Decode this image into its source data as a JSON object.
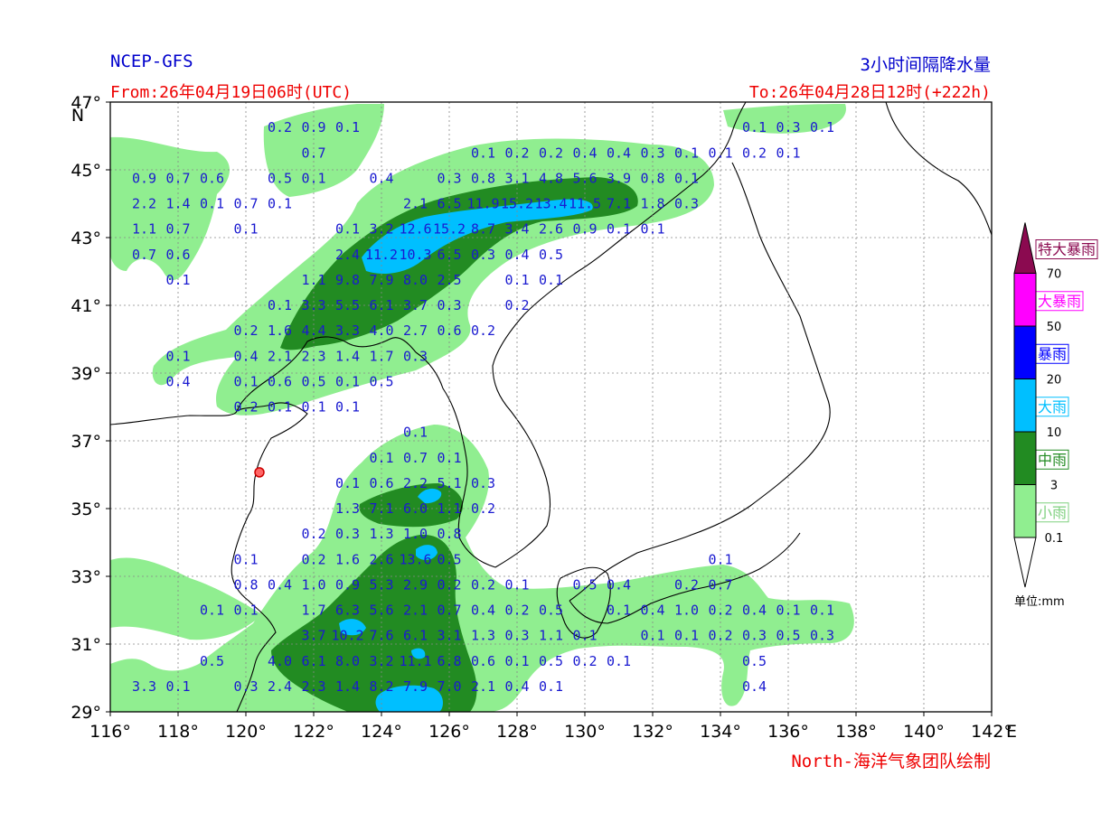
{
  "header": {
    "model": "NCEP-GFS",
    "product": "3小时间隔降水量",
    "from": "From:26年04月19日06时(UTC)",
    "to": "To:26年04月28日12时(+222h)"
  },
  "credit": "North-海洋气象团队绘制",
  "axes": {
    "lon_range": [
      116,
      142
    ],
    "lat_range": [
      29,
      47
    ],
    "x_ticks": [
      {
        "v": 116,
        "label": "116°"
      },
      {
        "v": 118,
        "label": "118°"
      },
      {
        "v": 120,
        "label": "120°"
      },
      {
        "v": 122,
        "label": "122°"
      },
      {
        "v": 124,
        "label": "124°"
      },
      {
        "v": 126,
        "label": "126°"
      },
      {
        "v": 128,
        "label": "128°"
      },
      {
        "v": 130,
        "label": "130°"
      },
      {
        "v": 132,
        "label": "132°"
      },
      {
        "v": 134,
        "label": "134°"
      },
      {
        "v": 136,
        "label": "136°"
      },
      {
        "v": 138,
        "label": "138°"
      },
      {
        "v": 140,
        "label": "140°"
      },
      {
        "v": 142,
        "label": "142°"
      }
    ],
    "x_unit": "E",
    "y_ticks": [
      {
        "v": 29,
        "label": "29°"
      },
      {
        "v": 31,
        "label": "31°"
      },
      {
        "v": 33,
        "label": "33°"
      },
      {
        "v": 35,
        "label": "35°"
      },
      {
        "v": 37,
        "label": "37°"
      },
      {
        "v": 39,
        "label": "39°"
      },
      {
        "v": 41,
        "label": "41°"
      },
      {
        "v": 43,
        "label": "43°"
      },
      {
        "v": 45,
        "label": "45°"
      },
      {
        "v": 47,
        "label": "47°"
      }
    ],
    "y_unit": "N",
    "grid": true
  },
  "legend": {
    "unit_label": "单位:mm",
    "thresholds": [
      "0.1",
      "3",
      "10",
      "20",
      "50",
      "70"
    ],
    "categories": [
      {
        "name": "小雨",
        "color": "#90ee90"
      },
      {
        "name": "中雨",
        "color": "#228b22"
      },
      {
        "name": "大雨",
        "color": "#00bfff"
      },
      {
        "name": "暴雨",
        "color": "#0000ff"
      },
      {
        "name": "大暴雨",
        "color": "#ff00ff"
      },
      {
        "name": "特大暴雨",
        "color": "#8b0a50"
      }
    ]
  },
  "station_marker": {
    "lon": 120.4,
    "lat": 36.07
  },
  "chart_data": {
    "type": "heatmap",
    "title": "3小时间隔降水量",
    "unit": "mm",
    "point_values": [
      {
        "lon": 121.0,
        "lat": 46.25,
        "v": "0.2"
      },
      {
        "lon": 122.0,
        "lat": 46.25,
        "v": "0.9"
      },
      {
        "lon": 123.0,
        "lat": 46.25,
        "v": "0.1"
      },
      {
        "lon": 135.0,
        "lat": 46.25,
        "v": "0.1"
      },
      {
        "lon": 136.0,
        "lat": 46.25,
        "v": "0.3"
      },
      {
        "lon": 137.0,
        "lat": 46.25,
        "v": "0.1"
      },
      {
        "lon": 122.0,
        "lat": 45.5,
        "v": "0.7"
      },
      {
        "lon": 127.0,
        "lat": 45.5,
        "v": "0.1"
      },
      {
        "lon": 128.0,
        "lat": 45.5,
        "v": "0.2"
      },
      {
        "lon": 129.0,
        "lat": 45.5,
        "v": "0.2"
      },
      {
        "lon": 130.0,
        "lat": 45.5,
        "v": "0.4"
      },
      {
        "lon": 131.0,
        "lat": 45.5,
        "v": "0.4"
      },
      {
        "lon": 132.0,
        "lat": 45.5,
        "v": "0.3"
      },
      {
        "lon": 133.0,
        "lat": 45.5,
        "v": "0.1"
      },
      {
        "lon": 134.0,
        "lat": 45.5,
        "v": "0.1"
      },
      {
        "lon": 135.0,
        "lat": 45.5,
        "v": "0.2"
      },
      {
        "lon": 136.0,
        "lat": 45.5,
        "v": "0.1"
      },
      {
        "lon": 117.0,
        "lat": 44.75,
        "v": "0.9"
      },
      {
        "lon": 118.0,
        "lat": 44.75,
        "v": "0.7"
      },
      {
        "lon": 119.0,
        "lat": 44.75,
        "v": "0.6"
      },
      {
        "lon": 121.0,
        "lat": 44.75,
        "v": "0.5"
      },
      {
        "lon": 122.0,
        "lat": 44.75,
        "v": "0.1"
      },
      {
        "lon": 124.0,
        "lat": 44.75,
        "v": "0.4"
      },
      {
        "lon": 126.0,
        "lat": 44.75,
        "v": "0.3"
      },
      {
        "lon": 127.0,
        "lat": 44.75,
        "v": "0.8"
      },
      {
        "lon": 128.0,
        "lat": 44.75,
        "v": "3.1"
      },
      {
        "lon": 129.0,
        "lat": 44.75,
        "v": "4.8"
      },
      {
        "lon": 130.0,
        "lat": 44.75,
        "v": "5.6"
      },
      {
        "lon": 131.0,
        "lat": 44.75,
        "v": "3.9"
      },
      {
        "lon": 132.0,
        "lat": 44.75,
        "v": "0.8"
      },
      {
        "lon": 133.0,
        "lat": 44.75,
        "v": "0.1"
      },
      {
        "lon": 117.0,
        "lat": 44.0,
        "v": "2.2"
      },
      {
        "lon": 118.0,
        "lat": 44.0,
        "v": "1.4"
      },
      {
        "lon": 119.0,
        "lat": 44.0,
        "v": "0.1"
      },
      {
        "lon": 120.0,
        "lat": 44.0,
        "v": "0.7"
      },
      {
        "lon": 121.0,
        "lat": 44.0,
        "v": "0.1"
      },
      {
        "lon": 125.0,
        "lat": 44.0,
        "v": "2.1"
      },
      {
        "lon": 126.0,
        "lat": 44.0,
        "v": "6.5"
      },
      {
        "lon": 127.0,
        "lat": 44.0,
        "v": "11.9"
      },
      {
        "lon": 128.0,
        "lat": 44.0,
        "v": "15.2"
      },
      {
        "lon": 129.0,
        "lat": 44.0,
        "v": "13.4"
      },
      {
        "lon": 130.0,
        "lat": 44.0,
        "v": "11.5"
      },
      {
        "lon": 131.0,
        "lat": 44.0,
        "v": "7.1"
      },
      {
        "lon": 132.0,
        "lat": 44.0,
        "v": "1.8"
      },
      {
        "lon": 133.0,
        "lat": 44.0,
        "v": "0.3"
      },
      {
        "lon": 117.0,
        "lat": 43.25,
        "v": "1.1"
      },
      {
        "lon": 118.0,
        "lat": 43.25,
        "v": "0.7"
      },
      {
        "lon": 120.0,
        "lat": 43.25,
        "v": "0.1"
      },
      {
        "lon": 123.0,
        "lat": 43.25,
        "v": "0.1"
      },
      {
        "lon": 124.0,
        "lat": 43.25,
        "v": "3.2"
      },
      {
        "lon": 125.0,
        "lat": 43.25,
        "v": "12.6"
      },
      {
        "lon": 126.0,
        "lat": 43.25,
        "v": "15.2"
      },
      {
        "lon": 127.0,
        "lat": 43.25,
        "v": "8.7"
      },
      {
        "lon": 128.0,
        "lat": 43.25,
        "v": "3.4"
      },
      {
        "lon": 129.0,
        "lat": 43.25,
        "v": "2.6"
      },
      {
        "lon": 130.0,
        "lat": 43.25,
        "v": "0.9"
      },
      {
        "lon": 131.0,
        "lat": 43.25,
        "v": "0.1"
      },
      {
        "lon": 132.0,
        "lat": 43.25,
        "v": "0.1"
      },
      {
        "lon": 117.0,
        "lat": 42.5,
        "v": "0.7"
      },
      {
        "lon": 118.0,
        "lat": 42.5,
        "v": "0.6"
      },
      {
        "lon": 123.0,
        "lat": 42.5,
        "v": "2.4"
      },
      {
        "lon": 124.0,
        "lat": 42.5,
        "v": "11.2"
      },
      {
        "lon": 125.0,
        "lat": 42.5,
        "v": "10.3"
      },
      {
        "lon": 126.0,
        "lat": 42.5,
        "v": "6.5"
      },
      {
        "lon": 127.0,
        "lat": 42.5,
        "v": "0.3"
      },
      {
        "lon": 128.0,
        "lat": 42.5,
        "v": "0.4"
      },
      {
        "lon": 129.0,
        "lat": 42.5,
        "v": "0.5"
      },
      {
        "lon": 118.0,
        "lat": 41.75,
        "v": "0.1"
      },
      {
        "lon": 122.0,
        "lat": 41.75,
        "v": "1.1"
      },
      {
        "lon": 123.0,
        "lat": 41.75,
        "v": "9.8"
      },
      {
        "lon": 124.0,
        "lat": 41.75,
        "v": "7.9"
      },
      {
        "lon": 125.0,
        "lat": 41.75,
        "v": "8.0"
      },
      {
        "lon": 126.0,
        "lat": 41.75,
        "v": "2.5"
      },
      {
        "lon": 128.0,
        "lat": 41.75,
        "v": "0.1"
      },
      {
        "lon": 129.0,
        "lat": 41.75,
        "v": "0.1"
      },
      {
        "lon": 121.0,
        "lat": 41.0,
        "v": "0.1"
      },
      {
        "lon": 122.0,
        "lat": 41.0,
        "v": "3.3"
      },
      {
        "lon": 123.0,
        "lat": 41.0,
        "v": "5.5"
      },
      {
        "lon": 124.0,
        "lat": 41.0,
        "v": "6.1"
      },
      {
        "lon": 125.0,
        "lat": 41.0,
        "v": "3.7"
      },
      {
        "lon": 126.0,
        "lat": 41.0,
        "v": "0.3"
      },
      {
        "lon": 128.0,
        "lat": 41.0,
        "v": "0.2"
      },
      {
        "lon": 120.0,
        "lat": 40.25,
        "v": "0.2"
      },
      {
        "lon": 121.0,
        "lat": 40.25,
        "v": "1.6"
      },
      {
        "lon": 122.0,
        "lat": 40.25,
        "v": "4.4"
      },
      {
        "lon": 123.0,
        "lat": 40.25,
        "v": "3.3"
      },
      {
        "lon": 124.0,
        "lat": 40.25,
        "v": "4.0"
      },
      {
        "lon": 125.0,
        "lat": 40.25,
        "v": "2.7"
      },
      {
        "lon": 126.0,
        "lat": 40.25,
        "v": "0.6"
      },
      {
        "lon": 127.0,
        "lat": 40.25,
        "v": "0.2"
      },
      {
        "lon": 118.0,
        "lat": 39.5,
        "v": "0.1"
      },
      {
        "lon": 120.0,
        "lat": 39.5,
        "v": "0.4"
      },
      {
        "lon": 121.0,
        "lat": 39.5,
        "v": "2.1"
      },
      {
        "lon": 122.0,
        "lat": 39.5,
        "v": "2.3"
      },
      {
        "lon": 123.0,
        "lat": 39.5,
        "v": "1.4"
      },
      {
        "lon": 124.0,
        "lat": 39.5,
        "v": "1.7"
      },
      {
        "lon": 125.0,
        "lat": 39.5,
        "v": "0.3"
      },
      {
        "lon": 118.0,
        "lat": 38.75,
        "v": "0.4"
      },
      {
        "lon": 120.0,
        "lat": 38.75,
        "v": "0.1"
      },
      {
        "lon": 121.0,
        "lat": 38.75,
        "v": "0.6"
      },
      {
        "lon": 122.0,
        "lat": 38.75,
        "v": "0.5"
      },
      {
        "lon": 123.0,
        "lat": 38.75,
        "v": "0.1"
      },
      {
        "lon": 124.0,
        "lat": 38.75,
        "v": "0.5"
      },
      {
        "lon": 120.0,
        "lat": 38.0,
        "v": "0.2"
      },
      {
        "lon": 121.0,
        "lat": 38.0,
        "v": "0.1"
      },
      {
        "lon": 122.0,
        "lat": 38.0,
        "v": "0.1"
      },
      {
        "lon": 123.0,
        "lat": 38.0,
        "v": "0.1"
      },
      {
        "lon": 125.0,
        "lat": 37.25,
        "v": "0.1"
      },
      {
        "lon": 124.0,
        "lat": 36.5,
        "v": "0.1"
      },
      {
        "lon": 125.0,
        "lat": 36.5,
        "v": "0.7"
      },
      {
        "lon": 126.0,
        "lat": 36.5,
        "v": "0.1"
      },
      {
        "lon": 123.0,
        "lat": 35.75,
        "v": "0.1"
      },
      {
        "lon": 124.0,
        "lat": 35.75,
        "v": "0.6"
      },
      {
        "lon": 125.0,
        "lat": 35.75,
        "v": "2.2"
      },
      {
        "lon": 126.0,
        "lat": 35.75,
        "v": "5.1"
      },
      {
        "lon": 127.0,
        "lat": 35.75,
        "v": "0.3"
      },
      {
        "lon": 123.0,
        "lat": 35.0,
        "v": "1.3"
      },
      {
        "lon": 124.0,
        "lat": 35.0,
        "v": "7.1"
      },
      {
        "lon": 125.0,
        "lat": 35.0,
        "v": "6.0"
      },
      {
        "lon": 126.0,
        "lat": 35.0,
        "v": "1.1"
      },
      {
        "lon": 127.0,
        "lat": 35.0,
        "v": "0.2"
      },
      {
        "lon": 122.0,
        "lat": 34.25,
        "v": "0.2"
      },
      {
        "lon": 123.0,
        "lat": 34.25,
        "v": "0.3"
      },
      {
        "lon": 124.0,
        "lat": 34.25,
        "v": "1.3"
      },
      {
        "lon": 125.0,
        "lat": 34.25,
        "v": "1.0"
      },
      {
        "lon": 126.0,
        "lat": 34.25,
        "v": "0.8"
      },
      {
        "lon": 120.0,
        "lat": 33.5,
        "v": "0.1"
      },
      {
        "lon": 122.0,
        "lat": 33.5,
        "v": "0.2"
      },
      {
        "lon": 123.0,
        "lat": 33.5,
        "v": "1.6"
      },
      {
        "lon": 124.0,
        "lat": 33.5,
        "v": "2.6"
      },
      {
        "lon": 125.0,
        "lat": 33.5,
        "v": "13.6"
      },
      {
        "lon": 126.0,
        "lat": 33.5,
        "v": "0.5"
      },
      {
        "lon": 134.0,
        "lat": 33.5,
        "v": "0.1"
      },
      {
        "lon": 120.0,
        "lat": 32.75,
        "v": "0.8"
      },
      {
        "lon": 121.0,
        "lat": 32.75,
        "v": "0.4"
      },
      {
        "lon": 122.0,
        "lat": 32.75,
        "v": "1.0"
      },
      {
        "lon": 123.0,
        "lat": 32.75,
        "v": "0.9"
      },
      {
        "lon": 124.0,
        "lat": 32.75,
        "v": "5.3"
      },
      {
        "lon": 125.0,
        "lat": 32.75,
        "v": "2.9"
      },
      {
        "lon": 126.0,
        "lat": 32.75,
        "v": "0.2"
      },
      {
        "lon": 127.0,
        "lat": 32.75,
        "v": "0.2"
      },
      {
        "lon": 128.0,
        "lat": 32.75,
        "v": "0.1"
      },
      {
        "lon": 130.0,
        "lat": 32.75,
        "v": "0.5"
      },
      {
        "lon": 131.0,
        "lat": 32.75,
        "v": "0.4"
      },
      {
        "lon": 133.0,
        "lat": 32.75,
        "v": "0.2"
      },
      {
        "lon": 134.0,
        "lat": 32.75,
        "v": "0.7"
      },
      {
        "lon": 119.0,
        "lat": 32.0,
        "v": "0.1"
      },
      {
        "lon": 120.0,
        "lat": 32.0,
        "v": "0.1"
      },
      {
        "lon": 122.0,
        "lat": 32.0,
        "v": "1.7"
      },
      {
        "lon": 123.0,
        "lat": 32.0,
        "v": "6.3"
      },
      {
        "lon": 124.0,
        "lat": 32.0,
        "v": "5.6"
      },
      {
        "lon": 125.0,
        "lat": 32.0,
        "v": "2.1"
      },
      {
        "lon": 126.0,
        "lat": 32.0,
        "v": "0.7"
      },
      {
        "lon": 127.0,
        "lat": 32.0,
        "v": "0.4"
      },
      {
        "lon": 128.0,
        "lat": 32.0,
        "v": "0.2"
      },
      {
        "lon": 129.0,
        "lat": 32.0,
        "v": "0.5"
      },
      {
        "lon": 131.0,
        "lat": 32.0,
        "v": "0.1"
      },
      {
        "lon": 132.0,
        "lat": 32.0,
        "v": "0.4"
      },
      {
        "lon": 133.0,
        "lat": 32.0,
        "v": "1.0"
      },
      {
        "lon": 134.0,
        "lat": 32.0,
        "v": "0.2"
      },
      {
        "lon": 135.0,
        "lat": 32.0,
        "v": "0.4"
      },
      {
        "lon": 136.0,
        "lat": 32.0,
        "v": "0.1"
      },
      {
        "lon": 137.0,
        "lat": 32.0,
        "v": "0.1"
      },
      {
        "lon": 122.0,
        "lat": 31.25,
        "v": "3.7"
      },
      {
        "lon": 123.0,
        "lat": 31.25,
        "v": "10.2"
      },
      {
        "lon": 124.0,
        "lat": 31.25,
        "v": "7.6"
      },
      {
        "lon": 125.0,
        "lat": 31.25,
        "v": "6.1"
      },
      {
        "lon": 126.0,
        "lat": 31.25,
        "v": "3.1"
      },
      {
        "lon": 127.0,
        "lat": 31.25,
        "v": "1.3"
      },
      {
        "lon": 128.0,
        "lat": 31.25,
        "v": "0.3"
      },
      {
        "lon": 129.0,
        "lat": 31.25,
        "v": "1.1"
      },
      {
        "lon": 130.0,
        "lat": 31.25,
        "v": "0.1"
      },
      {
        "lon": 132.0,
        "lat": 31.25,
        "v": "0.1"
      },
      {
        "lon": 133.0,
        "lat": 31.25,
        "v": "0.1"
      },
      {
        "lon": 134.0,
        "lat": 31.25,
        "v": "0.2"
      },
      {
        "lon": 135.0,
        "lat": 31.25,
        "v": "0.3"
      },
      {
        "lon": 136.0,
        "lat": 31.25,
        "v": "0.5"
      },
      {
        "lon": 137.0,
        "lat": 31.25,
        "v": "0.3"
      },
      {
        "lon": 119.0,
        "lat": 30.5,
        "v": "0.5"
      },
      {
        "lon": 121.0,
        "lat": 30.5,
        "v": "4.0"
      },
      {
        "lon": 122.0,
        "lat": 30.5,
        "v": "6.1"
      },
      {
        "lon": 123.0,
        "lat": 30.5,
        "v": "8.0"
      },
      {
        "lon": 124.0,
        "lat": 30.5,
        "v": "3.2"
      },
      {
        "lon": 125.0,
        "lat": 30.5,
        "v": "11.1"
      },
      {
        "lon": 126.0,
        "lat": 30.5,
        "v": "6.8"
      },
      {
        "lon": 127.0,
        "lat": 30.5,
        "v": "0.6"
      },
      {
        "lon": 128.0,
        "lat": 30.5,
        "v": "0.1"
      },
      {
        "lon": 129.0,
        "lat": 30.5,
        "v": "0.5"
      },
      {
        "lon": 130.0,
        "lat": 30.5,
        "v": "0.2"
      },
      {
        "lon": 131.0,
        "lat": 30.5,
        "v": "0.1"
      },
      {
        "lon": 135.0,
        "lat": 30.5,
        "v": "0.5"
      },
      {
        "lon": 117.0,
        "lat": 29.75,
        "v": "3.3"
      },
      {
        "lon": 118.0,
        "lat": 29.75,
        "v": "0.1"
      },
      {
        "lon": 120.0,
        "lat": 29.75,
        "v": "0.3"
      },
      {
        "lon": 121.0,
        "lat": 29.75,
        "v": "2.4"
      },
      {
        "lon": 122.0,
        "lat": 29.75,
        "v": "2.3"
      },
      {
        "lon": 123.0,
        "lat": 29.75,
        "v": "1.4"
      },
      {
        "lon": 124.0,
        "lat": 29.75,
        "v": "8.2"
      },
      {
        "lon": 125.0,
        "lat": 29.75,
        "v": "7.9"
      },
      {
        "lon": 126.0,
        "lat": 29.75,
        "v": "7.0"
      },
      {
        "lon": 127.0,
        "lat": 29.75,
        "v": "2.1"
      },
      {
        "lon": 128.0,
        "lat": 29.75,
        "v": "0.4"
      },
      {
        "lon": 129.0,
        "lat": 29.75,
        "v": "0.1"
      },
      {
        "lon": 135.0,
        "lat": 29.75,
        "v": "0.4"
      }
    ]
  }
}
